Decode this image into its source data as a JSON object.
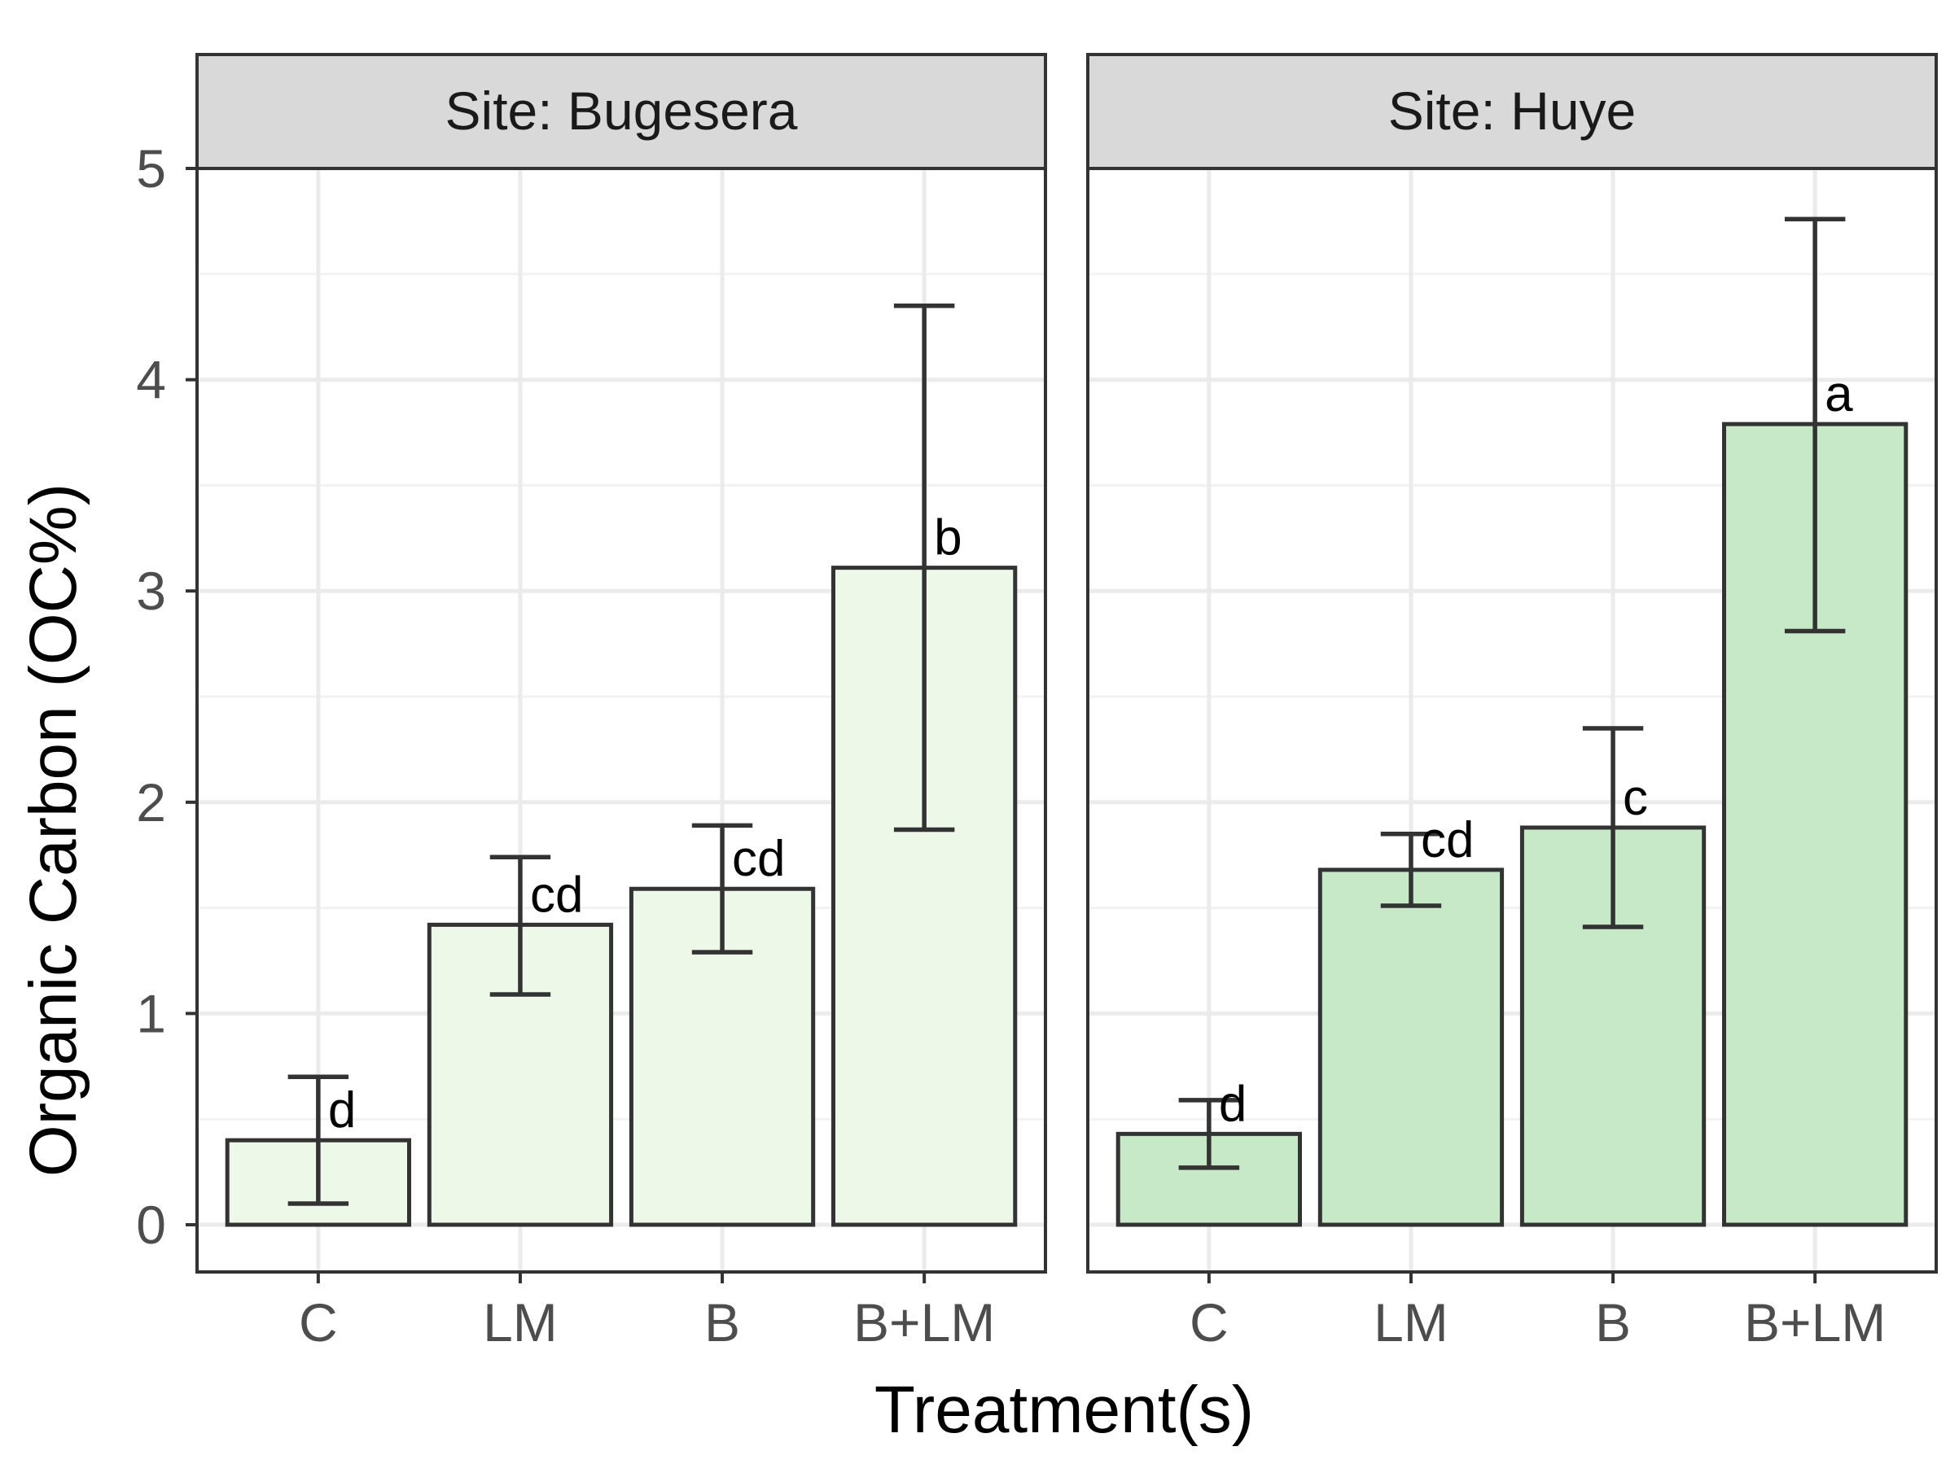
{
  "chart_data": {
    "type": "bar",
    "xlabel": "Treatment(s)",
    "ylabel": "Organic Carbon (OC%)",
    "ylim": [
      -0.22,
      5.0
    ],
    "yticks": [
      "0",
      "1",
      "2",
      "3",
      "4",
      "5"
    ],
    "categories": [
      "C",
      "LM",
      "B",
      "B+LM"
    ],
    "facets": [
      {
        "title": "Site: Bugesera",
        "fill": "#edf8e9",
        "values": [
          0.4,
          1.42,
          1.59,
          3.11
        ],
        "error_low": [
          0.1,
          1.09,
          1.29,
          1.87
        ],
        "error_high": [
          0.7,
          1.74,
          1.89,
          4.35
        ],
        "letters": [
          "d",
          "cd",
          "cd",
          "b"
        ]
      },
      {
        "title": "Site: Huye",
        "fill": "#c7e9c8",
        "values": [
          0.43,
          1.68,
          1.88,
          3.79
        ],
        "error_low": [
          0.27,
          1.51,
          1.41,
          2.81
        ],
        "error_high": [
          0.59,
          1.85,
          2.35,
          4.76
        ],
        "letters": [
          "d",
          "cd",
          "c",
          "a"
        ]
      }
    ],
    "grid": true,
    "legend": "none"
  }
}
